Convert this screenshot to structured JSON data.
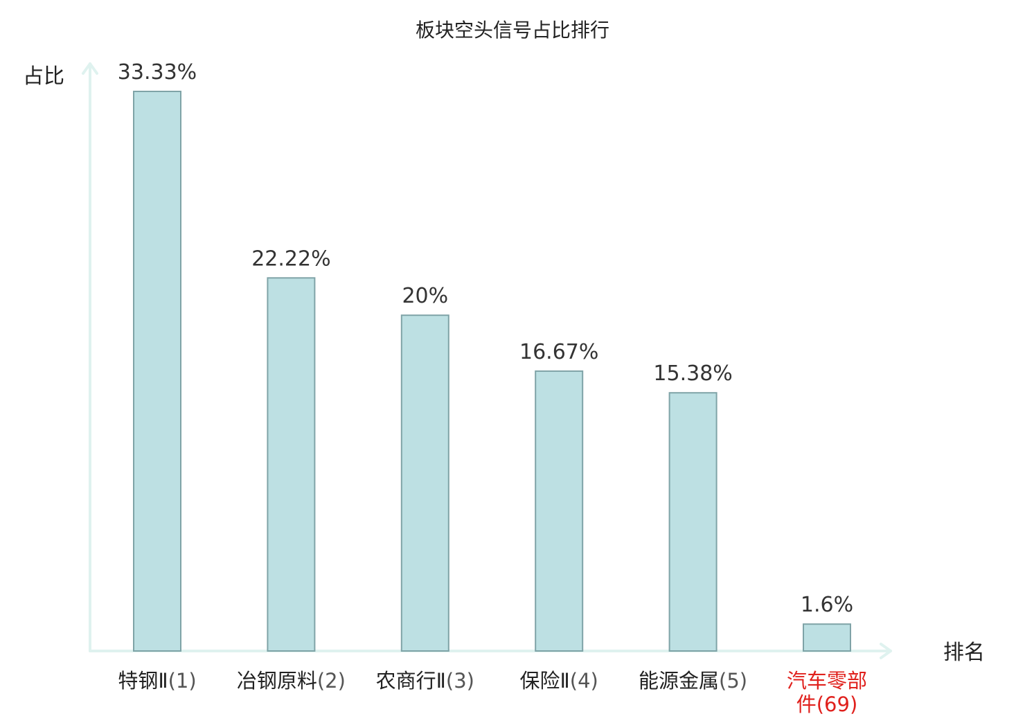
{
  "colors": {
    "bar_fill": "#bde0e3",
    "bar_stroke": "#7fa3a7",
    "axis": "#dff2ef",
    "highlight": "#e0201c"
  },
  "chart_data": {
    "type": "bar",
    "title": "板块空头信号占比排行",
    "xlabel": "排名",
    "ylabel": "占比",
    "ylim": [
      0,
      35
    ],
    "grid": false,
    "categories": [
      {
        "lines": [
          "特钢Ⅱ(1)"
        ],
        "highlight": false
      },
      {
        "lines": [
          "冶钢原料(2)"
        ],
        "highlight": false
      },
      {
        "lines": [
          "农商行Ⅱ(3)"
        ],
        "highlight": false
      },
      {
        "lines": [
          "保险Ⅱ(4)"
        ],
        "highlight": false
      },
      {
        "lines": [
          "能源金属(5)"
        ],
        "highlight": false
      },
      {
        "lines": [
          "汽车零部",
          "件(69)"
        ],
        "highlight": true
      }
    ],
    "values": [
      33.33,
      22.22,
      20,
      16.67,
      15.38,
      1.6
    ],
    "value_labels": [
      "33.33%",
      "22.22%",
      "20%",
      "16.67%",
      "15.38%",
      "1.6%"
    ]
  }
}
